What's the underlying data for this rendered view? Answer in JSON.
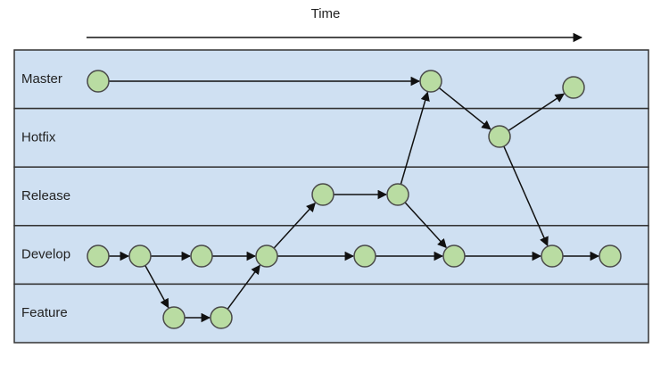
{
  "header": {
    "title": "Time"
  },
  "lanes": [
    {
      "label": "Master"
    },
    {
      "label": "Hotfix"
    },
    {
      "label": "Release"
    },
    {
      "label": "Develop"
    },
    {
      "label": "Feature"
    }
  ]
}
